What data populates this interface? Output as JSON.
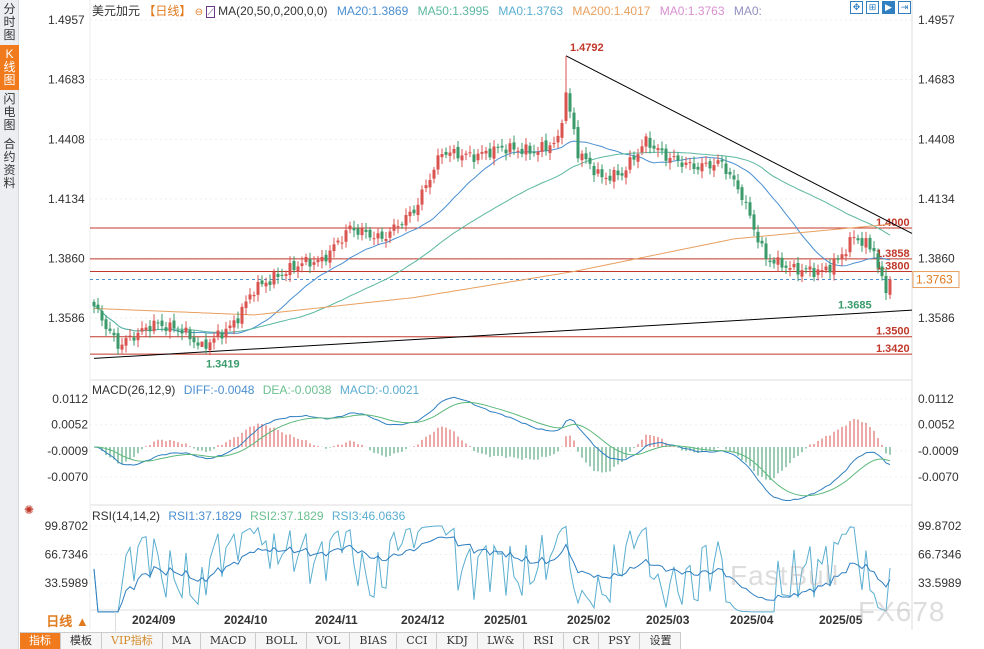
{
  "sidebar": {
    "tabs": [
      "分时图",
      "K线图",
      "闪电图",
      "合约资料"
    ],
    "active": 1
  },
  "header": {
    "symbol": "美元加元",
    "period": "【日线】",
    "ma_label": "MA(20,50,0,200,0,0)",
    "ma20": "MA20:1.3869",
    "ma50": "MA50:1.3995",
    "ma0a": "MA0:1.3763",
    "ma200": "MA200:1.4017",
    "ma0b": "MA0:1.3763",
    "ma0c": "MA0:"
  },
  "macd": {
    "label": "MACD(26,12,9)",
    "diff": "DIFF:-0.0048",
    "dea": "DEA:-0.0038",
    "macd": "MACD:-0.0021",
    "ticks": [
      "0.0112",
      "0.0052",
      "-0.0009",
      "-0.0070"
    ]
  },
  "rsi": {
    "label": "RSI(14,14,2)",
    "rsi1": "RSI1:37.1829",
    "rsi2": "RSI2:37.1829",
    "rsi3": "RSI3:46.0636",
    "ticks": [
      "99.8702",
      "66.7346",
      "33.5989"
    ]
  },
  "price_ticks": [
    "1.4957",
    "1.4683",
    "1.4408",
    "1.4134",
    "1.3860",
    "1.3586"
  ],
  "current_price": "1.3763",
  "period_selector": "日线 ▲",
  "dates": [
    "2024/09",
    "2024/10",
    "2024/11",
    "2024/12",
    "2025/01",
    "2025/02",
    "2025/03",
    "2025/04",
    "2025/05"
  ],
  "toolbar": [
    "指标",
    "模板",
    "VIP指标",
    "MA",
    "MACD",
    "BOLL",
    "VOL",
    "BIAS",
    "CCI",
    "KDJ",
    "LW&",
    "RSI",
    "CR",
    "PSY",
    "设置"
  ],
  "watermark": [
    "FastBull",
    "FX678"
  ],
  "colors": {
    "up": "#d9534f",
    "down": "#3a9a6a",
    "ma20": "#4a8fd0",
    "ma50": "#5cb8a0",
    "ma200": "#e8a060",
    "accent": "#f07a1c"
  },
  "chart_data": {
    "type": "candlestick",
    "title": "美元加元 日线",
    "ylim": [
      1.34,
      1.4957
    ],
    "annotations": {
      "high": "1.4792",
      "low": "1.3419",
      "recent_low": "1.3685"
    },
    "levels": [
      {
        "value": 1.4,
        "label": "1.4000"
      },
      {
        "value": 1.3858,
        "label": "1.3858"
      },
      {
        "value": 1.38,
        "label": "1.3800"
      },
      {
        "value": 1.35,
        "label": "1.3500"
      },
      {
        "value": 1.342,
        "label": "1.3420"
      }
    ],
    "close_keypoints": [
      [
        0,
        1.364
      ],
      [
        6,
        1.346
      ],
      [
        15,
        1.356
      ],
      [
        22,
        1.353
      ],
      [
        27,
        1.345
      ],
      [
        35,
        1.356
      ],
      [
        40,
        1.372
      ],
      [
        52,
        1.384
      ],
      [
        57,
        1.385
      ],
      [
        64,
        1.4
      ],
      [
        72,
        1.395
      ],
      [
        80,
        1.408
      ],
      [
        87,
        1.435
      ],
      [
        95,
        1.433
      ],
      [
        102,
        1.437
      ],
      [
        110,
        1.435
      ],
      [
        116,
        1.44
      ],
      [
        118,
        1.462
      ],
      [
        121,
        1.435
      ],
      [
        127,
        1.423
      ],
      [
        132,
        1.425
      ],
      [
        138,
        1.44
      ],
      [
        143,
        1.433
      ],
      [
        150,
        1.428
      ],
      [
        157,
        1.43
      ],
      [
        162,
        1.415
      ],
      [
        166,
        1.395
      ],
      [
        168,
        1.386
      ],
      [
        175,
        1.381
      ],
      [
        182,
        1.38
      ],
      [
        186,
        1.385
      ],
      [
        190,
        1.396
      ],
      [
        195,
        1.39
      ],
      [
        197,
        1.375
      ],
      [
        198,
        1.372
      ],
      [
        199,
        1.3763
      ]
    ],
    "ma200_keypoints": [
      [
        0,
        1.363
      ],
      [
        40,
        1.36
      ],
      [
        80,
        1.368
      ],
      [
        120,
        1.38
      ],
      [
        160,
        1.395
      ],
      [
        199,
        1.4017
      ]
    ],
    "trendlines": [
      {
        "from": [
          118,
          1.4792
        ],
        "to": [
          205,
          1.3975
        ]
      },
      {
        "from": [
          0,
          1.34
        ],
        "to": [
          205,
          1.3622
        ]
      }
    ]
  }
}
